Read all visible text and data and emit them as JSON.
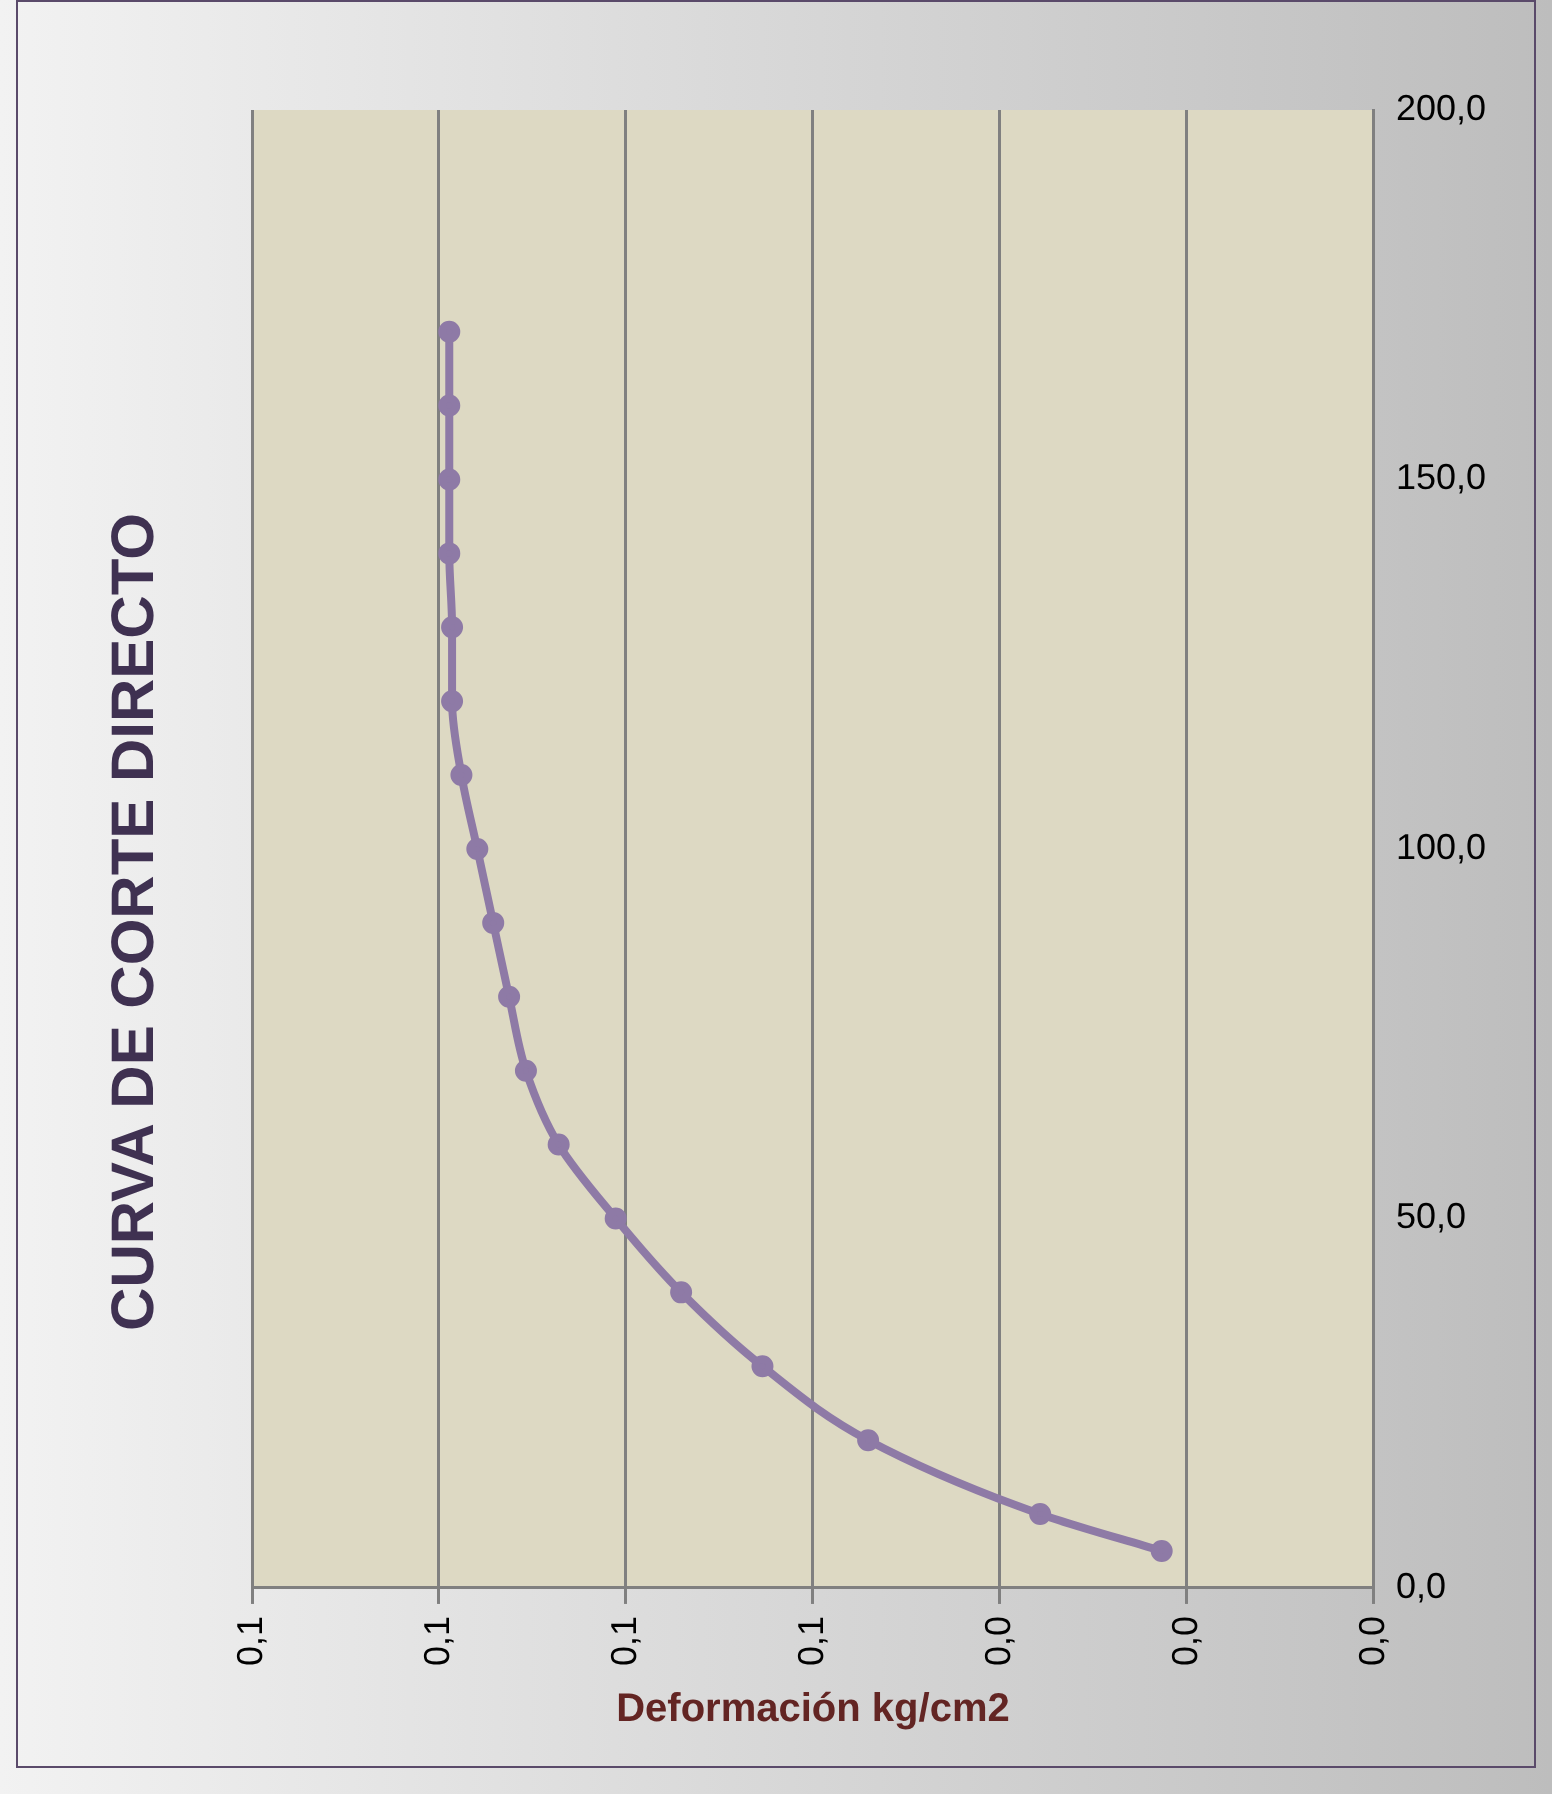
{
  "chart_data": {
    "type": "line",
    "title": "CURVA DE CORTE DIRECTO",
    "xlabel": "Deformación kg/cm2",
    "series": [
      {
        "color": "#8e7aa6",
        "x": [
          0.0227,
          0.0357,
          0.0541,
          0.0654,
          0.0741,
          0.0811,
          0.0872,
          0.0907,
          0.0925,
          0.0942,
          0.0959,
          0.0976,
          0.0986,
          0.0986,
          0.0989,
          0.0989,
          0.0989,
          0.0989
        ],
        "values": [
          5,
          10,
          20,
          30,
          40,
          50,
          60,
          70,
          80,
          90,
          100,
          110,
          120,
          130,
          140,
          150,
          160,
          170
        ]
      }
    ],
    "xlim": [
      0.12,
      0
    ],
    "xticks": [
      {
        "value": 0.12,
        "label": "0,1"
      },
      {
        "value": 0.1,
        "label": "0,1"
      },
      {
        "value": 0.08,
        "label": "0,1"
      },
      {
        "value": 0.06,
        "label": "0,1"
      },
      {
        "value": 0.04,
        "label": "0,0"
      },
      {
        "value": 0.02,
        "label": "0,0"
      },
      {
        "value": 0,
        "label": "0,0"
      }
    ],
    "ylim": [
      0,
      200
    ],
    "yticks": [
      {
        "value": 0,
        "label": "0,0"
      },
      {
        "value": 50,
        "label": "50,0"
      },
      {
        "value": 100,
        "label": "100,0"
      },
      {
        "value": 150,
        "label": "150,0"
      },
      {
        "value": 200,
        "label": "200,0"
      }
    ],
    "grid": "x",
    "marker": "circle",
    "line_style": "solid",
    "legend": false
  }
}
